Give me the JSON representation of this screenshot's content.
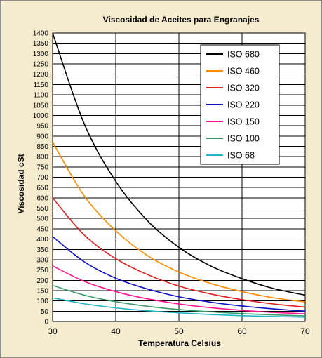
{
  "chart_data": {
    "type": "line",
    "title": "Viscosidad de Aceites para Engranajes",
    "xlabel": "Temperatura Celsius",
    "ylabel": "Viscosidad cSt",
    "xlim": [
      30,
      70
    ],
    "ylim": [
      0,
      1400
    ],
    "x_ticks": [
      30,
      40,
      50,
      60,
      70
    ],
    "y_ticks": [
      0,
      50,
      100,
      150,
      200,
      250,
      300,
      350,
      400,
      450,
      500,
      550,
      600,
      650,
      700,
      750,
      800,
      850,
      900,
      950,
      1000,
      1050,
      1100,
      1150,
      1200,
      1250,
      1300,
      1350,
      1400
    ],
    "grid": true,
    "legend": "top-right",
    "x": [
      30,
      35,
      40,
      45,
      50,
      55,
      60,
      65,
      70
    ],
    "series": [
      {
        "name": "ISO 680",
        "color": "#000000",
        "values": [
          1400,
          960,
          680,
          490,
          360,
          270,
          208,
          160,
          128
        ]
      },
      {
        "name": "ISO 460",
        "color": "#ff8c00",
        "values": [
          870,
          610,
          440,
          320,
          240,
          185,
          145,
          115,
          95
        ]
      },
      {
        "name": "ISO 320",
        "color": "#e02020",
        "values": [
          600,
          420,
          305,
          228,
          172,
          134,
          106,
          85,
          70
        ]
      },
      {
        "name": "ISO 220",
        "color": "#1010c8",
        "values": [
          412,
          290,
          210,
          158,
          120,
          94,
          75,
          61,
          50
        ]
      },
      {
        "name": "ISO 150",
        "color": "#ff1493",
        "values": [
          270,
          195,
          145,
          110,
          85,
          67,
          54,
          44,
          37
        ]
      },
      {
        "name": "ISO 100",
        "color": "#3c9a6e",
        "values": [
          175,
          128,
          96,
          74,
          58,
          47,
          38,
          32,
          27
        ]
      },
      {
        "name": "ISO 68",
        "color": "#1fb4c8",
        "values": [
          115,
          86,
          66,
          52,
          42,
          34,
          28,
          24,
          21
        ]
      }
    ]
  }
}
